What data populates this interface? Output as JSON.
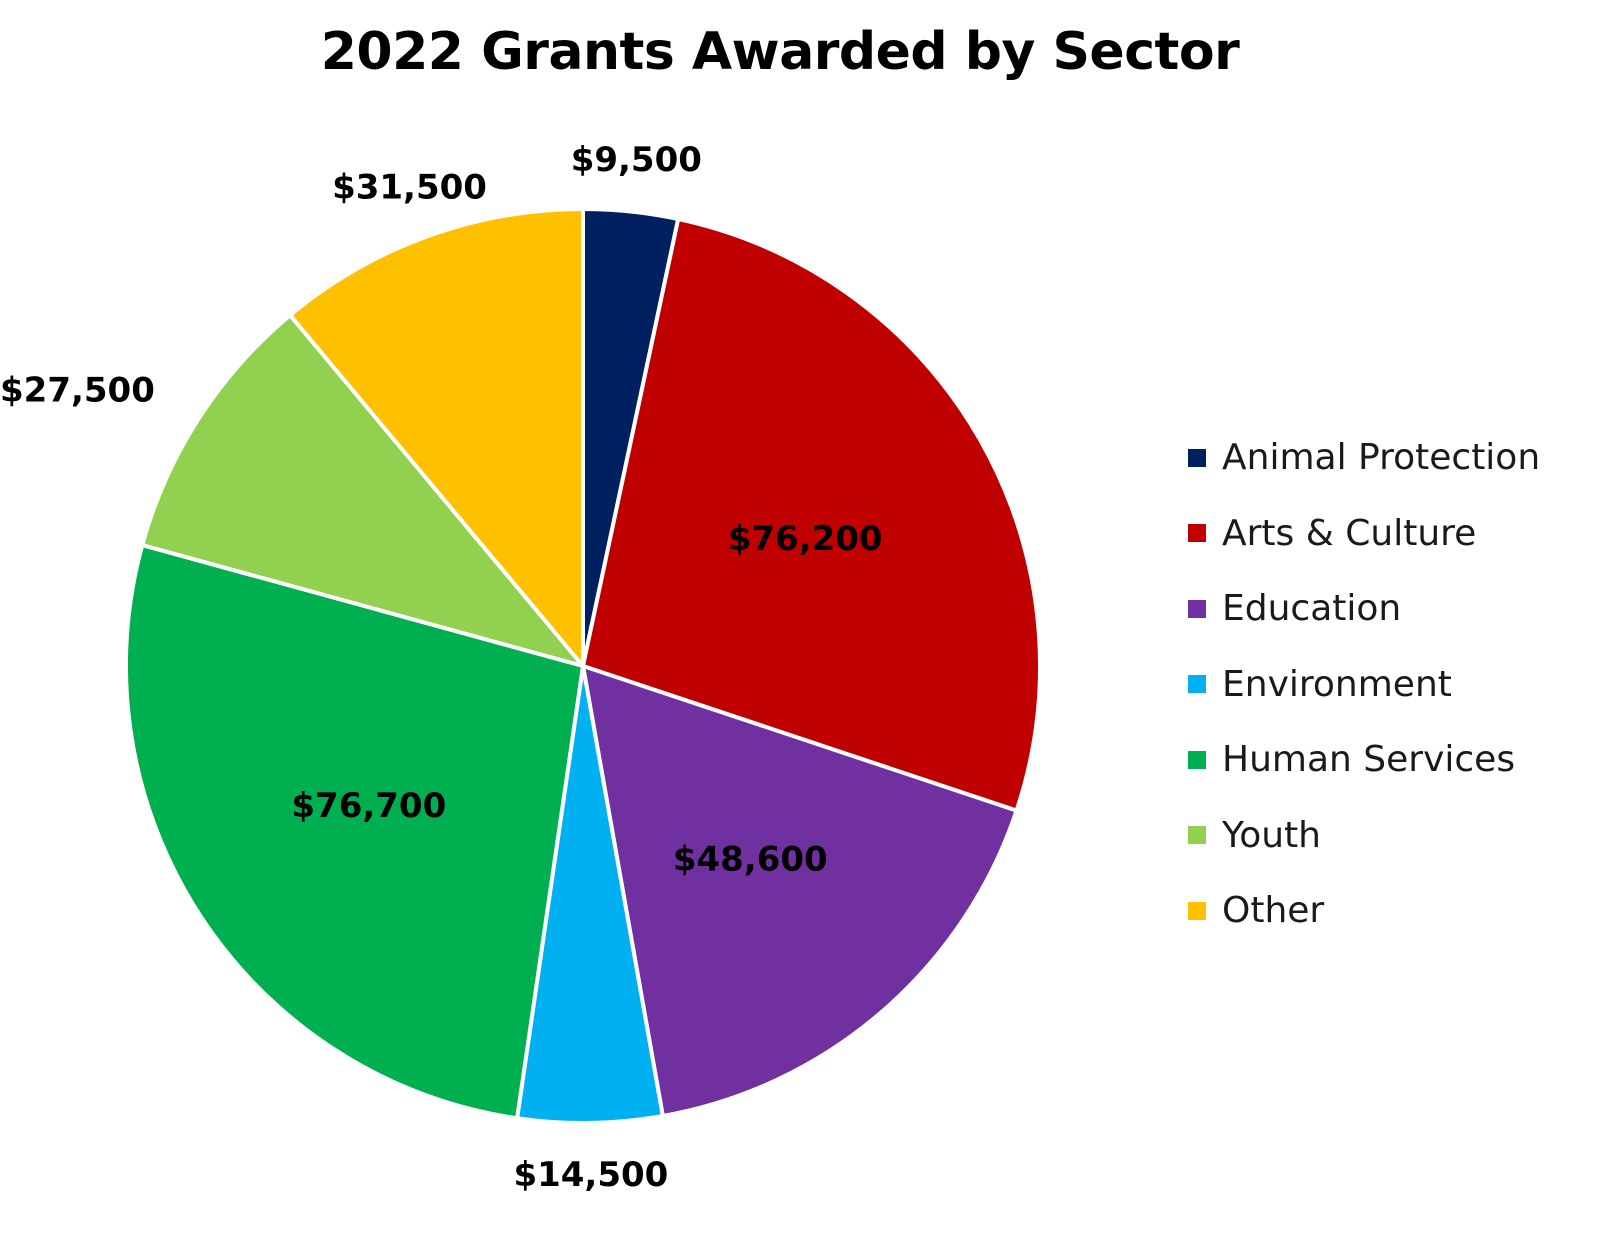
{
  "chart_data": {
    "type": "pie",
    "title": "2022 Grants Awarded by Sector",
    "categories": [
      "Animal Protection",
      "Arts & Culture",
      "Education",
      "Environment",
      "Human Services",
      "Youth",
      "Other"
    ],
    "values": [
      9500,
      76200,
      48600,
      14500,
      76700,
      27500,
      31500
    ],
    "data_labels": [
      "$9,500",
      "$76,200",
      "$48,600",
      "$14,500",
      "$76,700",
      "$27,500",
      "$31,500"
    ],
    "colors": [
      "#002060",
      "#C00000",
      "#7030A0",
      "#00B0F0",
      "#00B050",
      "#92D050",
      "#FFC000"
    ],
    "label_placement": [
      "outside",
      "inside",
      "inside",
      "outside",
      "inside",
      "outside",
      "outside"
    ],
    "start_angle": "12 o'clock",
    "direction": "clockwise",
    "legend": "right"
  }
}
